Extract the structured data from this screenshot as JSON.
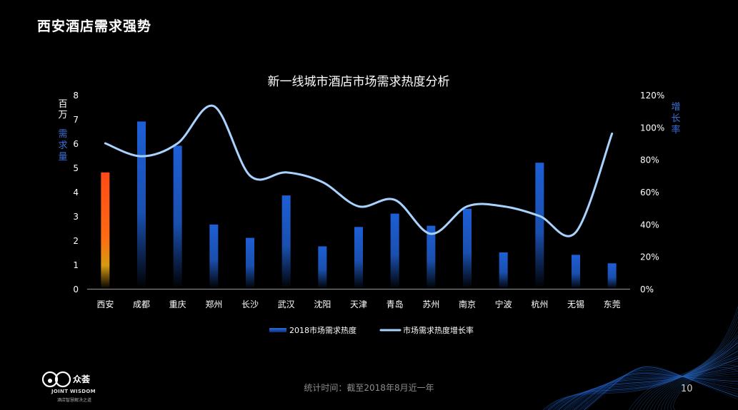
{
  "slide": {
    "title": "西安酒店需求强势",
    "footer_note": "统计时间：截至2018年8月近一年",
    "page_number": "10",
    "logo": {
      "brand": "众荟",
      "en": "JOINT WISDOM",
      "sub": "酒店智慧解决之道"
    }
  },
  "colors": {
    "bar_highlight": "#ff4a17",
    "bar": "#1f62d0",
    "line": "#a9d3ff",
    "axis_label": "#3b6fd8"
  },
  "chart_data": {
    "type": "bar",
    "title": "新一线城市酒店市场需求热度分析",
    "categories": [
      "西安",
      "成都",
      "重庆",
      "郑州",
      "长沙",
      "武汉",
      "沈阳",
      "天津",
      "青岛",
      "苏州",
      "南京",
      "宁波",
      "杭州",
      "无锡",
      "东莞"
    ],
    "series": [
      {
        "name": "2018市场需求热度",
        "type": "bar",
        "axis": "left",
        "values": [
          4.8,
          6.9,
          5.9,
          2.65,
          2.1,
          3.85,
          1.75,
          2.55,
          3.1,
          2.6,
          3.3,
          1.5,
          5.2,
          1.4,
          1.05
        ]
      },
      {
        "name": "市场需求热度增长率",
        "type": "line",
        "axis": "right",
        "values": [
          0.9,
          0.82,
          0.9,
          1.13,
          0.7,
          0.72,
          0.66,
          0.51,
          0.55,
          0.34,
          0.51,
          0.51,
          0.45,
          0.35,
          0.96
        ]
      }
    ],
    "y_left": {
      "label": "需求量",
      "unit": "百万",
      "ticks": [
        0,
        1,
        2,
        3,
        4,
        5,
        6,
        7,
        8
      ],
      "range": [
        0,
        8
      ]
    },
    "y_right": {
      "label": "增长率",
      "ticks": [
        "0%",
        "20%",
        "40%",
        "60%",
        "80%",
        "100%",
        "120%"
      ],
      "range": [
        0,
        1.2
      ]
    },
    "legend": {
      "position": "bottom"
    }
  }
}
